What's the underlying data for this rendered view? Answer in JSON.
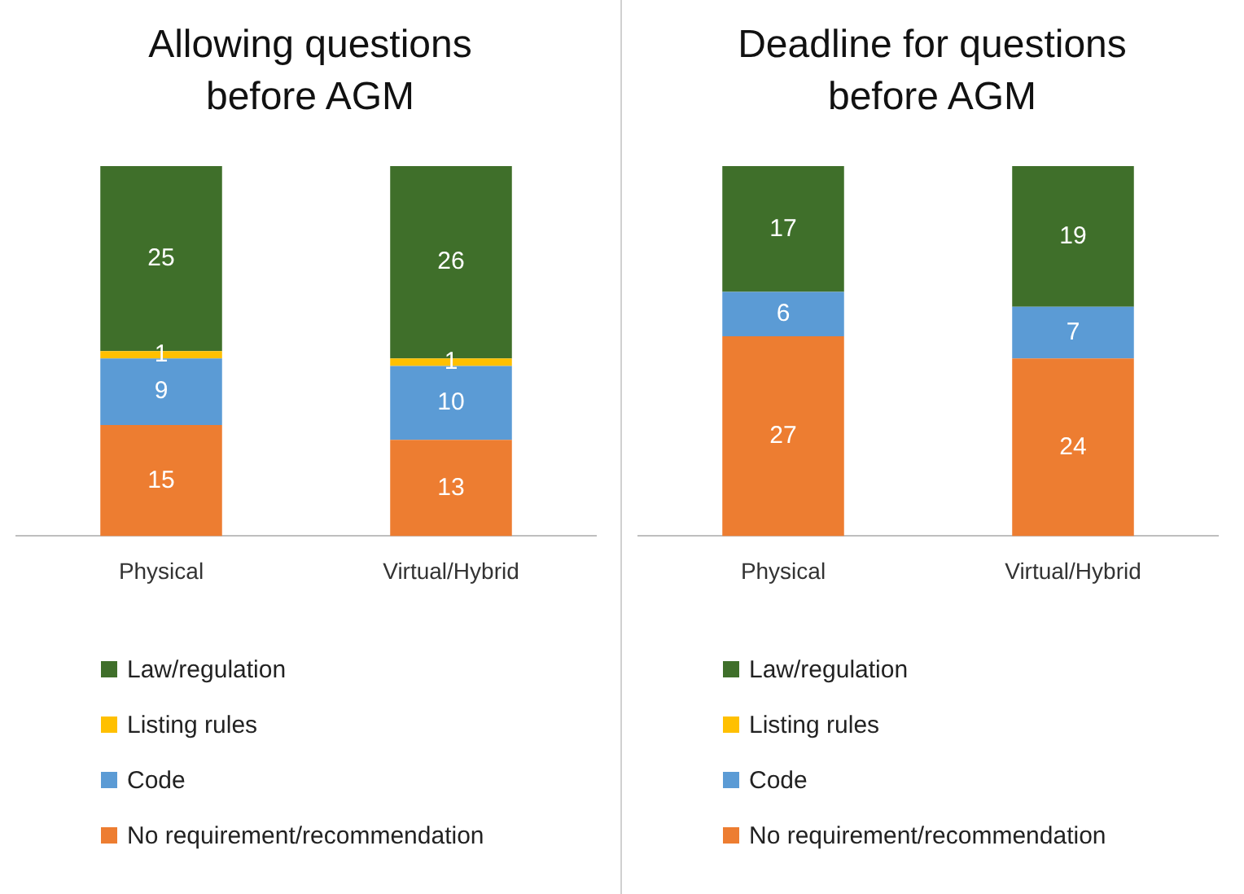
{
  "chart_data": [
    {
      "type": "bar",
      "title": "Allowing questions before AGM",
      "stacked": true,
      "categories": [
        "Physical",
        "Virtual/Hybrid"
      ],
      "ylim": [
        0,
        50
      ],
      "tick_labels": "x",
      "grid": false,
      "legend": "bottom",
      "data_labels": true,
      "series": [
        {
          "name": "No requirement/recommendation",
          "color": "#ed7d31",
          "values": [
            15,
            13
          ]
        },
        {
          "name": "Code",
          "color": "#5b9bd5",
          "values": [
            9,
            10
          ]
        },
        {
          "name": "Listing rules",
          "color": "#ffc000",
          "values": [
            1,
            1
          ]
        },
        {
          "name": "Law/regulation",
          "color": "#3f6f2a",
          "values": [
            25,
            26
          ]
        }
      ]
    },
    {
      "type": "bar",
      "title": "Deadline for questions before AGM",
      "stacked": true,
      "categories": [
        "Physical",
        "Virtual/Hybrid"
      ],
      "ylim": [
        0,
        50
      ],
      "tick_labels": "x",
      "grid": false,
      "legend": "bottom",
      "data_labels": true,
      "series": [
        {
          "name": "No requirement/recommendation",
          "color": "#ed7d31",
          "values": [
            27,
            24
          ]
        },
        {
          "name": "Code",
          "color": "#5b9bd5",
          "values": [
            6,
            7
          ]
        },
        {
          "name": "Listing rules",
          "color": "#ffc000",
          "values": [
            null,
            null
          ]
        },
        {
          "name": "Law/regulation",
          "color": "#3f6f2a",
          "values": [
            17,
            19
          ]
        }
      ]
    }
  ]
}
